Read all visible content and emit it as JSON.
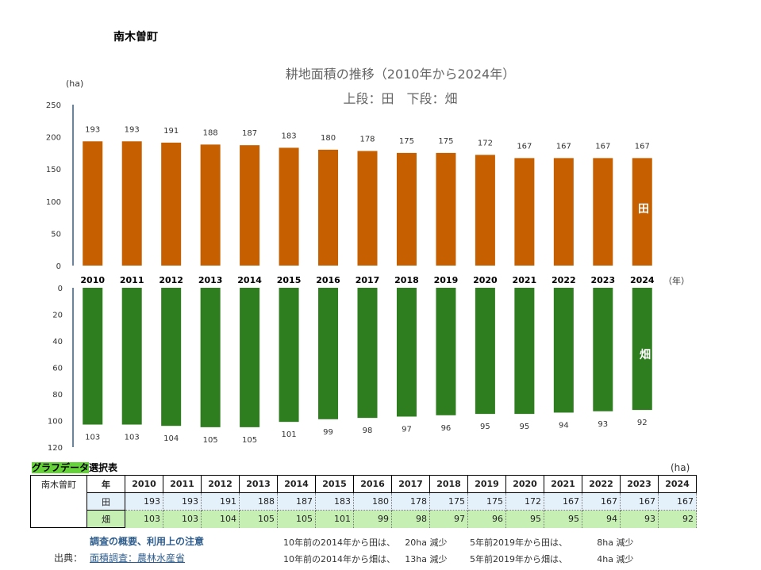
{
  "place": "南木曽町",
  "title_line1": "耕地面積の推移（2010年から2024年）",
  "title_line2": "上段：田　下段：畑",
  "unit_ha": "(ha)",
  "year_unit": "（年）",
  "label_ta": "田",
  "label_hata": "畑",
  "colors": {
    "ta": "#c65f00",
    "hata": "#2e7d1f",
    "axis": "#2f5d8c"
  },
  "chart_data": [
    {
      "type": "bar",
      "title": "耕地面積の推移（2010年から2024年）",
      "subtitle": "上段：田　下段：畑",
      "ylabel": "(ha)",
      "xlabel": "（年）",
      "categories": [
        "2010",
        "2011",
        "2012",
        "2013",
        "2014",
        "2015",
        "2016",
        "2017",
        "2018",
        "2019",
        "2020",
        "2021",
        "2022",
        "2023",
        "2024"
      ],
      "series": [
        {
          "name": "田",
          "values": [
            193,
            193,
            191,
            188,
            187,
            183,
            180,
            178,
            175,
            175,
            172,
            167,
            167,
            167,
            167
          ]
        }
      ],
      "ylim": [
        0,
        250
      ],
      "yticks": [
        "0",
        "50",
        "100",
        "150",
        "200",
        "250"
      ]
    },
    {
      "type": "bar",
      "categories": [
        "2010",
        "2011",
        "2012",
        "2013",
        "2014",
        "2015",
        "2016",
        "2017",
        "2018",
        "2019",
        "2020",
        "2021",
        "2022",
        "2023",
        "2024"
      ],
      "series": [
        {
          "name": "畑",
          "values": [
            103,
            103,
            104,
            105,
            105,
            101,
            99,
            98,
            97,
            96,
            95,
            95,
            94,
            93,
            92
          ]
        }
      ],
      "ylim": [
        0,
        120
      ],
      "y_inverted": true,
      "yticks": [
        "0",
        "20",
        "40",
        "60",
        "80",
        "100",
        "120"
      ]
    }
  ],
  "table": {
    "caption_highlight": "グラフデータ",
    "caption_rest": "選択表",
    "unit": "(ha)",
    "municipality": "南木曽町",
    "header_label": "年",
    "years": [
      "2010",
      "2011",
      "2012",
      "2013",
      "2014",
      "2015",
      "2016",
      "2017",
      "2018",
      "2019",
      "2020",
      "2021",
      "2022",
      "2023",
      "2024"
    ],
    "row_ta_label": "田",
    "row_ta": [
      193,
      193,
      191,
      188,
      187,
      183,
      180,
      178,
      175,
      175,
      172,
      167,
      167,
      167,
      167
    ],
    "row_hata_label": "畑",
    "row_hata": [
      103,
      103,
      104,
      105,
      105,
      101,
      99,
      98,
      97,
      96,
      95,
      95,
      94,
      93,
      92
    ]
  },
  "footer": {
    "note_link": "調査の概要、利用上の注意",
    "source_label": "出典：",
    "source_link": "面積調査：農林水産省",
    "summary": [
      {
        "text": "10年前の2014年から田は、",
        "amount": "20ha",
        "change": "減少"
      },
      {
        "text": "5年前2019年から田は、",
        "amount": "8ha",
        "change": "減少"
      },
      {
        "text": "10年前の2014年から畑は、",
        "amount": "13ha",
        "change": "減少"
      },
      {
        "text": "5年前2019年から畑は、",
        "amount": "4ha",
        "change": "減少"
      }
    ]
  }
}
